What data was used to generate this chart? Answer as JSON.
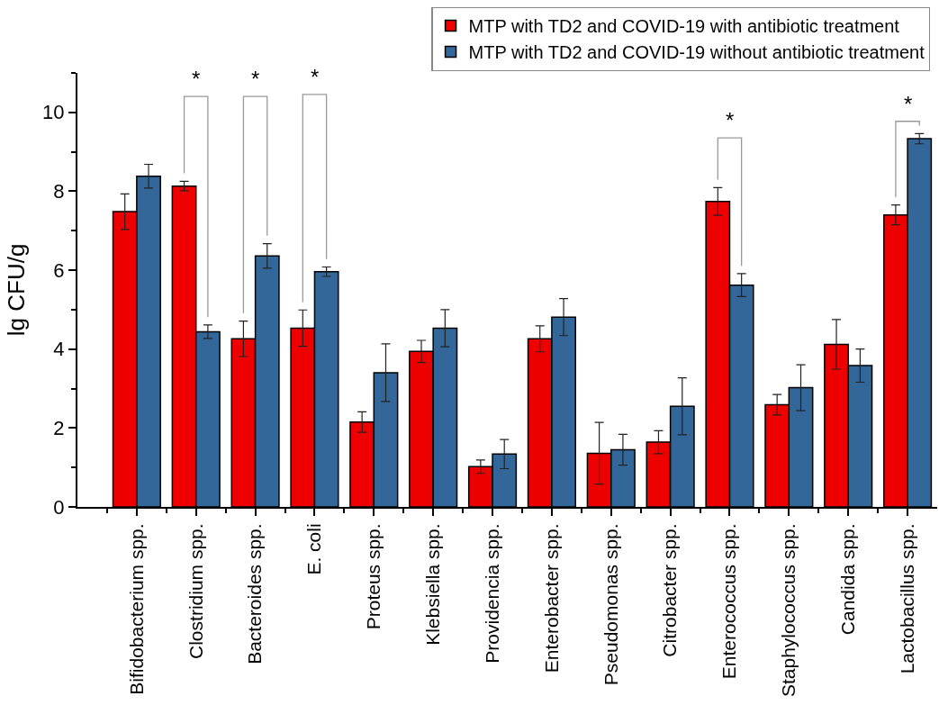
{
  "chart_data": {
    "type": "bar",
    "categories": [
      "Bifidobacterium spp.",
      "Clostridium spp.",
      "Bacteroides spp.",
      "E. coli",
      "Proteus spp.",
      "Klebsiella spp.",
      "Providencia spp.",
      "Enterobacter spp.",
      "Pseudomonas spp.",
      "Citrobacter spp.",
      "Enterococcus spp.",
      "Staphylococcus spp.",
      "Candida spp.",
      "Lactobacillus spp."
    ],
    "series": [
      {
        "name": "MTP with TD2 and COVID-19 with antibiotic treatment",
        "color": "#ee0000",
        "values": [
          7.48,
          8.13,
          4.26,
          4.53,
          2.15,
          3.94,
          1.02,
          4.26,
          1.36,
          1.64,
          7.74,
          2.59,
          4.12,
          7.4
        ],
        "errors": [
          0.45,
          0.12,
          0.45,
          0.46,
          0.26,
          0.28,
          0.17,
          0.33,
          0.78,
          0.29,
          0.35,
          0.26,
          0.63,
          0.25
        ]
      },
      {
        "name": "MTP with TD2 and COVID-19 without antibiotic treatment",
        "color": "#336699",
        "values": [
          8.38,
          4.44,
          6.36,
          5.96,
          3.4,
          4.53,
          1.34,
          4.81,
          1.45,
          2.55,
          5.62,
          3.02,
          3.58,
          9.33
        ],
        "errors": [
          0.3,
          0.17,
          0.31,
          0.12,
          0.73,
          0.47,
          0.37,
          0.47,
          0.39,
          0.72,
          0.29,
          0.58,
          0.42,
          0.13
        ]
      }
    ],
    "ylabel": "lg CFU/g",
    "ylim": [
      0,
      11
    ],
    "yticks": [
      0,
      {
        "value": 1,
        "label": null
      },
      2,
      {
        "value": 3,
        "label": null
      },
      4,
      {
        "value": 5,
        "label": null
      },
      6,
      {
        "value": 7,
        "label": null
      },
      8,
      {
        "value": 9,
        "label": null
      },
      10,
      {
        "value": 11,
        "label": null
      }
    ],
    "annotations": [
      "*",
      "*",
      "*",
      "*",
      "*"
    ],
    "legend": "top right"
  }
}
